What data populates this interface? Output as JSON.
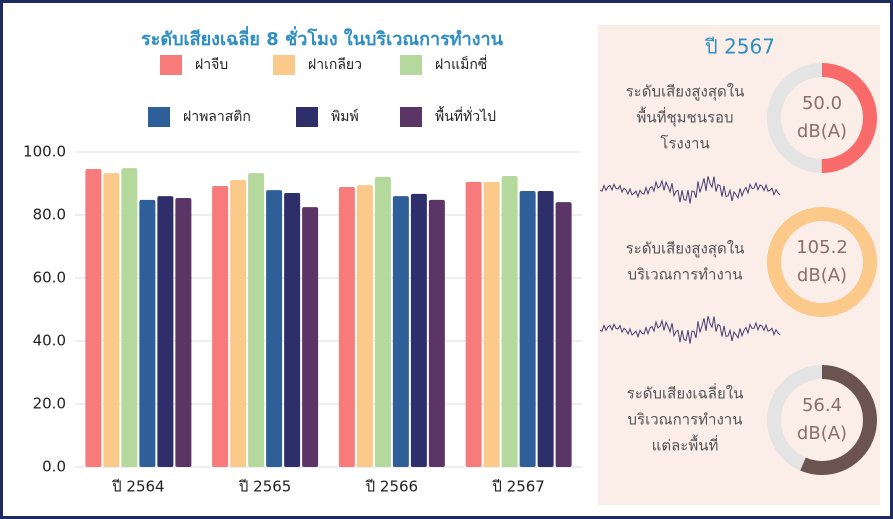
{
  "chart_data": {
    "type": "bar",
    "title": "ระดับเสียงเฉลี่ย 8 ชั่วโมง ในบริเวณการทำงาน",
    "categories": [
      "ปี 2564",
      "ปี 2565",
      "ปี 2566",
      "ปี 2567"
    ],
    "series": [
      {
        "name": "ฝาจีบ",
        "color": "#f77b7b",
        "values": [
          94.6,
          89.2,
          88.9,
          90.5
        ]
      },
      {
        "name": "ฝาเกลียว",
        "color": "#fbc98a",
        "values": [
          93.3,
          91.1,
          89.5,
          90.5
        ]
      },
      {
        "name": "ฝาแม็กซี่",
        "color": "#b5d99c",
        "values": [
          94.9,
          93.3,
          92.1,
          92.4
        ]
      },
      {
        "name": "ฝาพลาสติก",
        "color": "#2f5f98",
        "values": [
          84.8,
          87.9,
          86.0,
          87.6
        ]
      },
      {
        "name": "พิมพ์",
        "color": "#2e2e6b",
        "values": [
          86.0,
          87.0,
          86.7,
          87.6
        ]
      },
      {
        "name": "พื้นที่ทั่วไป",
        "color": "#5b3566",
        "values": [
          85.4,
          82.5,
          84.8,
          84.1
        ]
      }
    ],
    "ylim": [
      0,
      100
    ],
    "yticks": [
      {
        "value": 0,
        "label": "0.0"
      },
      {
        "value": 20,
        "label": "20.0"
      },
      {
        "value": 40,
        "label": "40.0"
      },
      {
        "value": 60,
        "label": "60.0"
      },
      {
        "value": 80,
        "label": "80.0"
      },
      {
        "value": 100,
        "label": "100.0"
      }
    ],
    "grid": true
  },
  "panel": {
    "title": "ปี 2567",
    "unit": "dB(A)",
    "gauges": [
      {
        "label": [
          "ระดับเสียงสูงสุดใน",
          "พื้นที่ชุมชนรอบ",
          "โรงงาน"
        ],
        "value": 50,
        "value_label": "50.0",
        "color": "#f96b6b"
      },
      {
        "label": [
          "ระดับเสียงสูงสุดใน",
          "บริเวณการทำงาน"
        ],
        "value": 105.2,
        "value_label": "105.2",
        "color": "#fbc98a"
      },
      {
        "label": [
          "ระดับเสียงเฉลี่ยใน",
          "บริเวณการทำงาน",
          "แต่ละพื้นที่"
        ],
        "value": 56.4,
        "value_label": "56.4",
        "color": "#6b5350"
      }
    ]
  }
}
